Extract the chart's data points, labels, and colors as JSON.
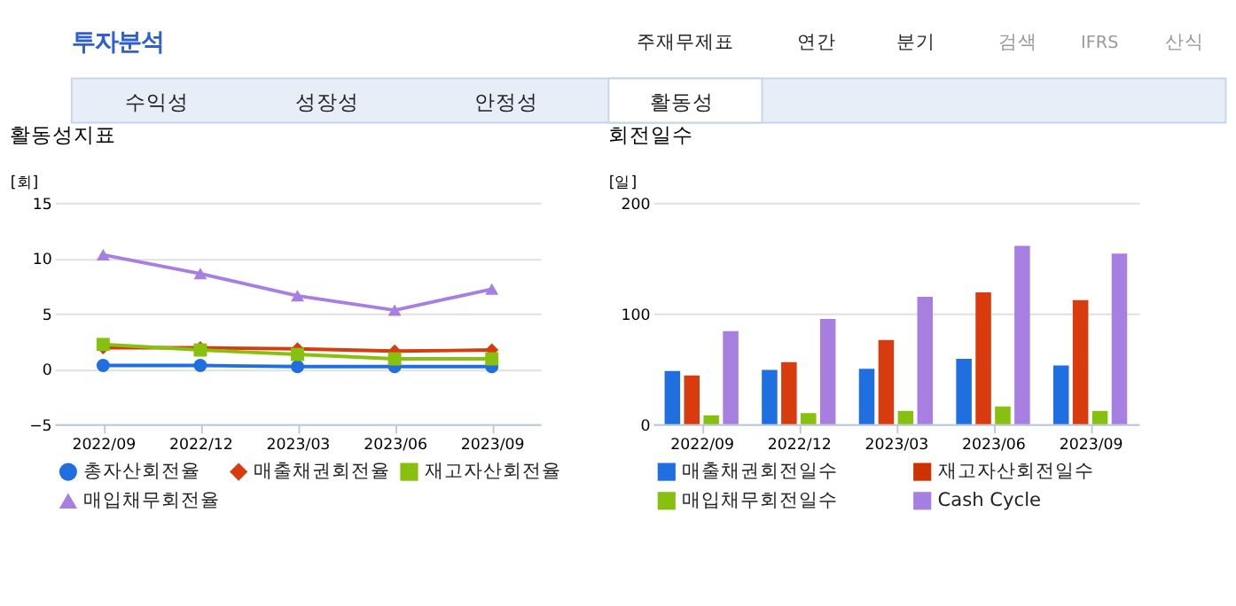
{
  "chart_data": [
    {
      "type": "other",
      "title": "투자분석",
      "annotations": [
        "주재무제표",
        "연간",
        "분기",
        "검색",
        "IFRS",
        "산식",
        "수익성",
        "성장성",
        "안정성",
        "활동성"
      ]
    },
    {
      "type": "line",
      "title": "활동성지표",
      "ylabel": "[회]",
      "categories": [
        "2022/09",
        "2022/12",
        "2023/03",
        "2023/06",
        "2023/09"
      ],
      "ylim": [
        -5,
        15
      ],
      "yticks": [
        -5,
        0,
        5,
        10,
        15
      ],
      "grid": "y",
      "legend": "bottom",
      "line_style": "solid",
      "series": [
        {
          "name": "총자산회전율",
          "color": "#1f6fe0",
          "marker": "circle",
          "values": [
            0.3,
            0.3,
            0.2,
            0.2,
            0.2
          ]
        },
        {
          "name": "매출채권회전율",
          "color": "#d83c0e",
          "marker": "diamond",
          "values": [
            1.9,
            1.9,
            1.8,
            1.6,
            1.7
          ]
        },
        {
          "name": "재고자산회전율",
          "color": "#88c010",
          "marker": "square",
          "values": [
            2.2,
            1.7,
            1.3,
            0.9,
            0.9
          ]
        },
        {
          "name": "매입채무회전율",
          "color": "#a77fe0",
          "marker": "triangle",
          "values": [
            10.3,
            8.6,
            6.6,
            5.3,
            7.2
          ]
        }
      ]
    },
    {
      "type": "bar",
      "title": "회전일수",
      "ylabel": "[일]",
      "categories": [
        "2022/09",
        "2022/12",
        "2023/03",
        "2023/06",
        "2023/09"
      ],
      "ylim": [
        0,
        200
      ],
      "yticks": [
        0,
        100,
        200
      ],
      "grid": "y",
      "legend": "bottom",
      "series": [
        {
          "name": "매출채권회전일수",
          "color": "#1f6fe0",
          "values": [
            48,
            49,
            50,
            59,
            53
          ]
        },
        {
          "name": "재고자산회전일수",
          "color": "#cc3300",
          "values": [
            44,
            56,
            76,
            119,
            112
          ]
        },
        {
          "name": "매입채무회전일수",
          "color": "#88c010",
          "values": [
            8,
            10,
            12,
            16,
            12
          ]
        },
        {
          "name": "Cash Cycle",
          "color": "#a77fe0",
          "values": [
            84,
            95,
            115,
            161,
            154
          ]
        }
      ]
    }
  ]
}
